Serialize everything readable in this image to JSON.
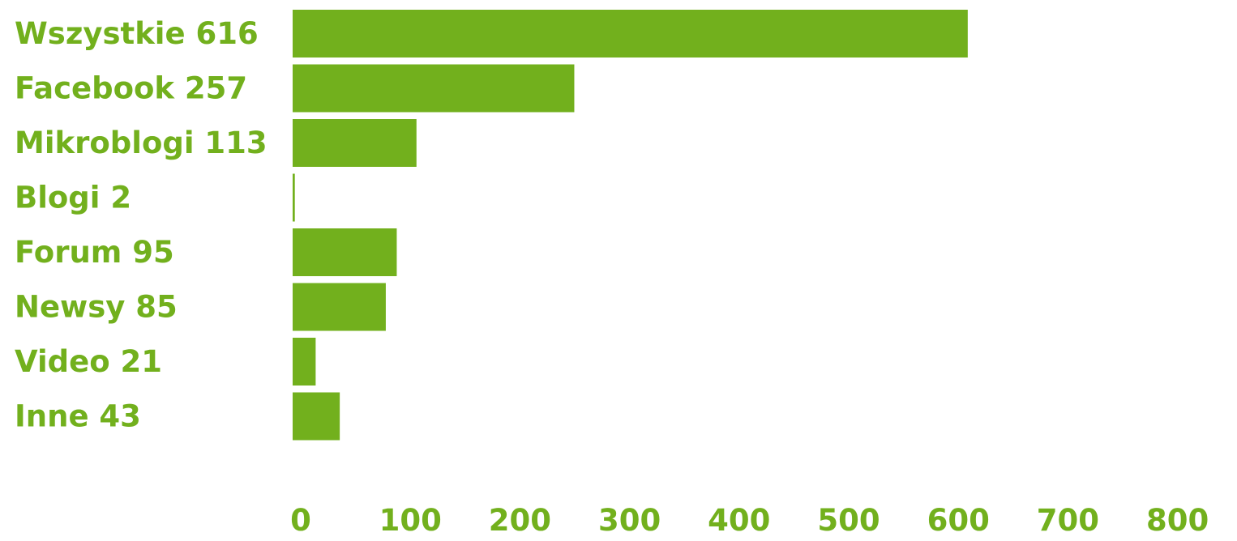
{
  "chart_data": {
    "type": "bar",
    "orientation": "horizontal",
    "categories": [
      "Wszystkie 616",
      "Facebook 257",
      "Mikroblogi 113",
      "Blogi 2",
      "Forum 95",
      "Newsy 85",
      "Video 21",
      "Inne 43"
    ],
    "values": [
      616,
      257,
      113,
      2,
      95,
      85,
      21,
      43
    ],
    "xlim": [
      0,
      800
    ],
    "x_ticks": [
      "0",
      "100",
      "200",
      "300",
      "400",
      "500",
      "600",
      "700",
      "800"
    ],
    "grid": false,
    "legend": "none"
  },
  "colors": {
    "bar": "#72b01d",
    "label": "#72b01d",
    "tick": "#72b01d"
  }
}
